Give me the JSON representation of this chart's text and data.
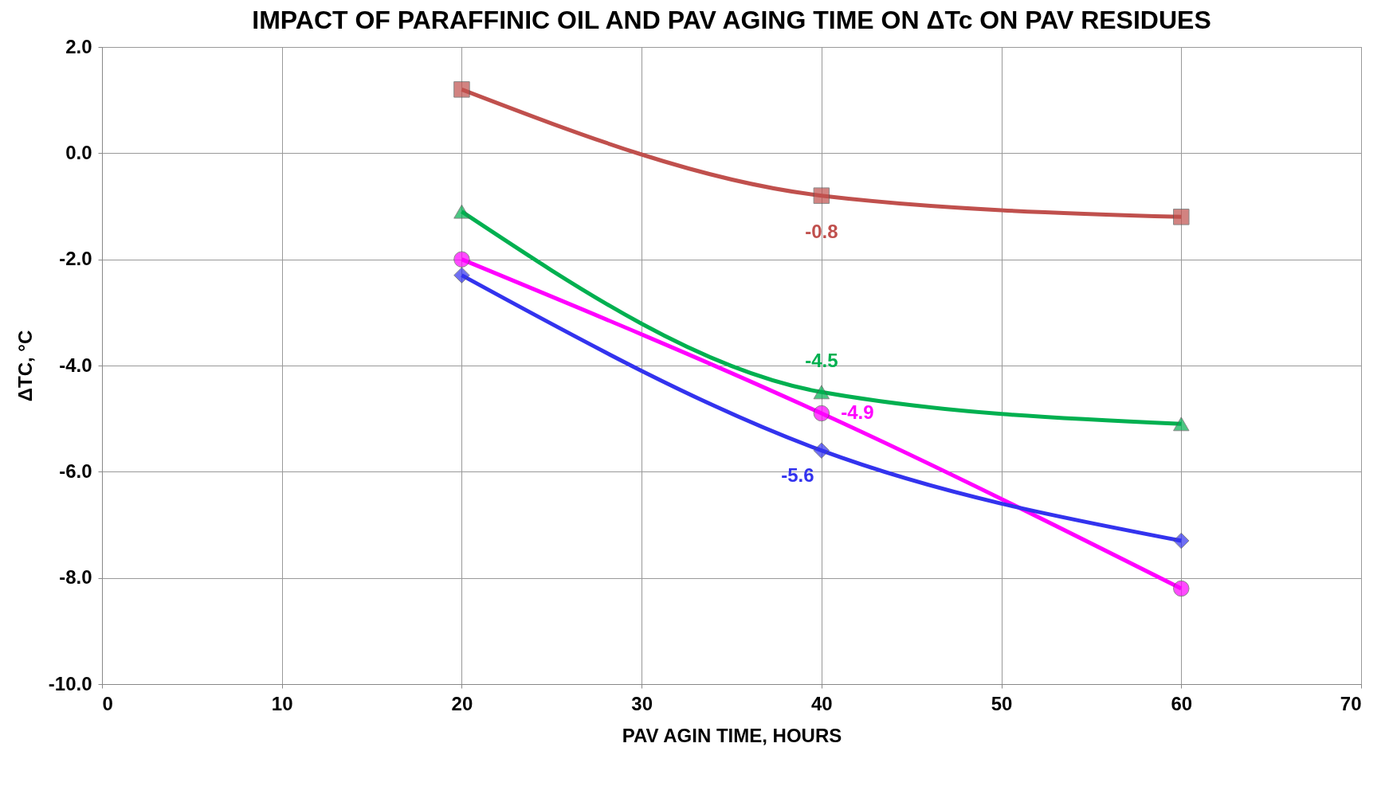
{
  "chart_data": {
    "type": "line",
    "title": "IMPACT OF PARAFFINIC OIL AND PAV AGING TIME ON ΔTc ON PAV RESIDUES",
    "xlabel": "PAV AGIN TIME, HOURS",
    "ylabel": "ΔTC, °C",
    "x": [
      20,
      40,
      60
    ],
    "series": [
      {
        "color": "#c0504d",
        "marker": "square",
        "values": [
          1.2,
          -0.8,
          -1.2
        ],
        "value_labels": [
          null,
          "-0.8",
          null
        ]
      },
      {
        "color": "#00b050",
        "marker": "triangle",
        "values": [
          -1.1,
          -4.5,
          -5.1
        ],
        "value_labels": [
          null,
          "-4.5",
          null
        ]
      },
      {
        "color": "#ff00ff",
        "marker": "circle",
        "values": [
          -2.0,
          -4.9,
          -8.2
        ],
        "value_labels": [
          null,
          "-4.9",
          null
        ]
      },
      {
        "color": "#3333ee",
        "marker": "diamond",
        "values": [
          -2.3,
          -5.6,
          -7.3
        ],
        "value_labels": [
          null,
          "-5.6",
          null
        ]
      }
    ],
    "xlim": [
      0,
      70
    ],
    "xticks": [
      0,
      10,
      20,
      30,
      40,
      50,
      60,
      70
    ],
    "ylim": [
      -10,
      2
    ],
    "yticks": [
      {
        "value": -10,
        "label": "-10.0"
      },
      {
        "value": -8,
        "label": "-8.0"
      },
      {
        "value": -6,
        "label": "-6.0"
      },
      {
        "value": -4,
        "label": "-4.0"
      },
      {
        "value": -2,
        "label": "-2.0"
      },
      {
        "value": 0,
        "label": "0.0"
      },
      {
        "value": 2,
        "label": "2.0"
      }
    ],
    "grid": true
  }
}
